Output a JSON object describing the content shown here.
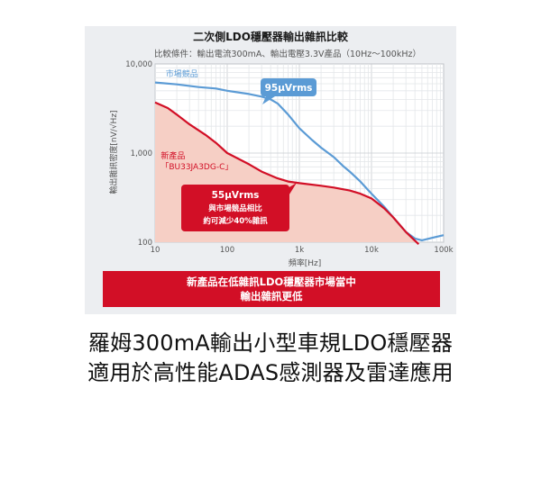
{
  "chart_data": {
    "type": "line",
    "title": "二次側LDO穩壓器輸出雜訊比較",
    "subtitle": "比較條件：輸出電流300mA、輸出電壓3.3V產品（10Hz〜100kHz）",
    "xlabel": "頻率[Hz]",
    "ylabel": "輸出雜訊密度[nV/√Hz]",
    "x_scale": "log",
    "y_scale": "log",
    "xlim": [
      10,
      100000
    ],
    "ylim": [
      100,
      10000
    ],
    "x_ticks": [
      "10",
      "100",
      "1k",
      "10k",
      "100k"
    ],
    "y_ticks": [
      "10,000",
      "1,000",
      "100"
    ],
    "x_tick_values": [
      10,
      100,
      1000,
      10000,
      100000
    ],
    "y_tick_values": [
      10000,
      1000,
      100
    ],
    "grid": true,
    "series": [
      {
        "name": "市場競品",
        "color": "#5b9bd5",
        "x": [
          10,
          20,
          40,
          70,
          100,
          200,
          300,
          400,
          500,
          700,
          1000,
          1500,
          2000,
          3000,
          4000,
          5000,
          7000,
          10000,
          15000,
          20000,
          30000,
          40000,
          50000,
          70000,
          100000
        ],
        "y": [
          6200,
          5900,
          5500,
          5300,
          5000,
          4600,
          4300,
          4000,
          3600,
          2700,
          1900,
          1400,
          1150,
          900,
          720,
          620,
          480,
          350,
          250,
          190,
          130,
          110,
          105,
          112,
          120
        ]
      },
      {
        "name": "新產品\n「BU33JA3DG-C」",
        "color": "#d20f26",
        "x": [
          10,
          15,
          20,
          30,
          50,
          70,
          100,
          200,
          300,
          500,
          700,
          1000,
          2000,
          3000,
          5000,
          7000,
          10000,
          15000,
          20000,
          30000,
          40000,
          45000
        ],
        "y": [
          3700,
          3200,
          2700,
          2100,
          1600,
          1300,
          1000,
          750,
          620,
          520,
          480,
          460,
          430,
          410,
          380,
          350,
          310,
          240,
          190,
          130,
          104,
          95
        ],
        "fill": "#f6cfc5"
      }
    ],
    "annotations": [
      {
        "series": 0,
        "text": "95μVrms"
      },
      {
        "series": 1,
        "lines": [
          "55μVrms",
          "與市場競品相比",
          "約可減少40%雜訊"
        ]
      }
    ]
  },
  "footer": {
    "line1": "新產品在低雜訊LDO穩壓器市場當中",
    "line2": "輸出雜訊更低"
  },
  "headline": {
    "line1": "羅姆300mA輸出小型車規LDO穩壓器",
    "line2": "適用於高性能ADAS感測器及雷達應用"
  }
}
